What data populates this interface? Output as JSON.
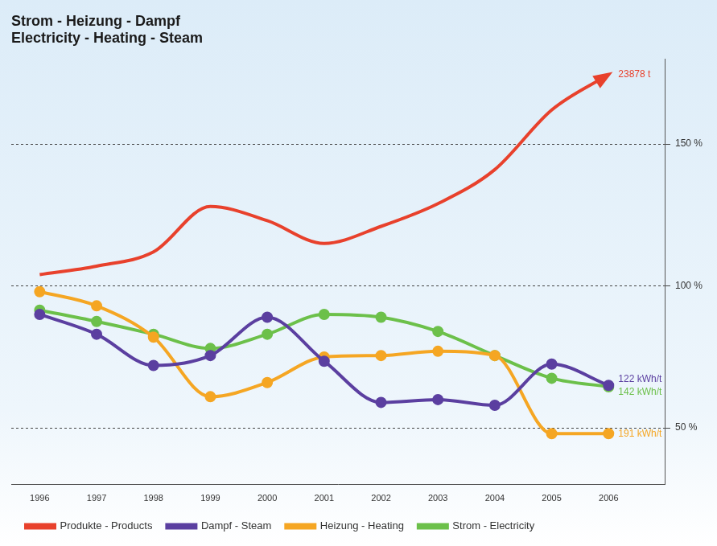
{
  "chart_data": {
    "type": "line",
    "title": [
      "Strom - Heizung - Dampf",
      "Electricity - Heating - Steam"
    ],
    "x": [
      1996,
      1997,
      1998,
      1999,
      2000,
      2001,
      2002,
      2003,
      2004,
      2005,
      2006
    ],
    "xlim": [
      1995.5,
      2007
    ],
    "xticks": [
      1996,
      1997,
      1998,
      1999,
      2000,
      2001,
      2002,
      2003,
      2004,
      2005,
      2006
    ],
    "ylim": [
      30,
      180
    ],
    "yticks": [
      {
        "value": 50,
        "label": "50 %"
      },
      {
        "value": 100,
        "label": "100 %"
      },
      {
        "value": 150,
        "label": "150 %"
      }
    ],
    "grid": true,
    "legend": "bottom",
    "series": [
      {
        "name": "Produkte - Products",
        "color": "#e8412c",
        "marker": "arrow",
        "end_label": "23878 t",
        "values": [
          104,
          107,
          112,
          128,
          123,
          115,
          121,
          129,
          141,
          162,
          174.5
        ]
      },
      {
        "name": "Dampf - Steam",
        "color": "#5b3fa0",
        "marker": "circle",
        "end_label": "122 kWh/t",
        "values": [
          90,
          83,
          72,
          75.5,
          89,
          73.5,
          59,
          60,
          58,
          72.5,
          65
        ]
      },
      {
        "name": "Heizung - Heating",
        "color": "#f5a623",
        "marker": "circle",
        "end_label": "191 kWh/t",
        "values": [
          98,
          93,
          82,
          61,
          66,
          75,
          75.5,
          77,
          75.5,
          48,
          48
        ]
      },
      {
        "name": "Strom - Electricity",
        "color": "#6cc04a",
        "marker": "circle",
        "end_label": "142 kWh/t",
        "values": [
          91.5,
          87.5,
          83,
          78,
          83,
          90,
          89,
          84,
          75.5,
          67.5,
          64.5
        ]
      }
    ]
  }
}
